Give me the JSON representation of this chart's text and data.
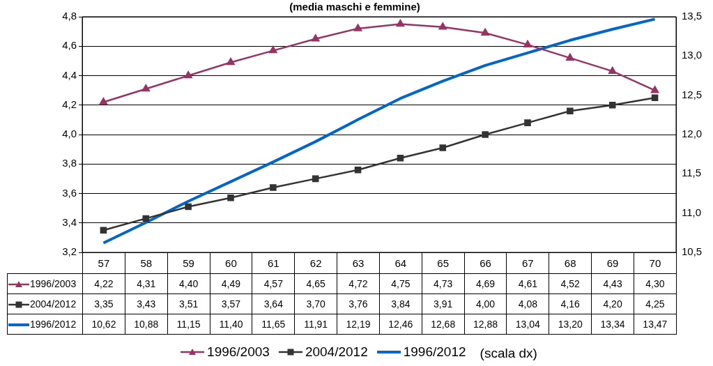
{
  "chart_data": {
    "type": "line",
    "title": "(media maschi e femmine)",
    "categories": [
      "57",
      "58",
      "59",
      "60",
      "61",
      "62",
      "63",
      "64",
      "65",
      "66",
      "67",
      "68",
      "69",
      "70"
    ],
    "series": [
      {
        "name": "1996/2003",
        "color": "#993366",
        "marker": "triangle",
        "values": [
          4.22,
          4.31,
          4.4,
          4.49,
          4.57,
          4.65,
          4.72,
          4.75,
          4.73,
          4.69,
          4.61,
          4.52,
          4.43,
          4.3
        ],
        "value_labels": [
          "4,22",
          "4,31",
          "4,40",
          "4,49",
          "4,57",
          "4,65",
          "4,72",
          "4,75",
          "4,73",
          "4,69",
          "4,61",
          "4,52",
          "4,43",
          "4,30"
        ]
      },
      {
        "name": "2004/2012",
        "color": "#333333",
        "marker": "square",
        "values": [
          3.35,
          3.43,
          3.51,
          3.57,
          3.64,
          3.7,
          3.76,
          3.84,
          3.91,
          4.0,
          4.08,
          4.16,
          4.2,
          4.25
        ],
        "value_labels": [
          "3,35",
          "3,43",
          "3,51",
          "3,57",
          "3,64",
          "3,70",
          "3,76",
          "3,84",
          "3,91",
          "4,00",
          "4,08",
          "4,16",
          "4,20",
          "4,25"
        ]
      },
      {
        "name": "1996/2012",
        "color": "#0066cc",
        "marker": "none",
        "axis": "y2",
        "values": [
          10.62,
          10.88,
          11.15,
          11.4,
          11.65,
          11.91,
          12.19,
          12.46,
          12.68,
          12.88,
          13.04,
          13.2,
          13.34,
          13.47
        ],
        "value_labels": [
          "10,62",
          "10,88",
          "11,15",
          "11,40",
          "11,65",
          "11,91",
          "12,19",
          "12,46",
          "12,68",
          "12,88",
          "13,04",
          "13,20",
          "13,34",
          "13,47"
        ]
      }
    ],
    "ylim": [
      3.2,
      4.8
    ],
    "yticks": [
      {
        "value": 3.2,
        "label": "3,2"
      },
      {
        "value": 3.4,
        "label": "3,4"
      },
      {
        "value": 3.6,
        "label": "3,6"
      },
      {
        "value": 3.8,
        "label": "3,8"
      },
      {
        "value": 4.0,
        "label": "4,0"
      },
      {
        "value": 4.2,
        "label": "4,2"
      },
      {
        "value": 4.4,
        "label": "4,4"
      },
      {
        "value": 4.6,
        "label": "4,6"
      },
      {
        "value": 4.8,
        "label": "4,8"
      }
    ],
    "y2lim": [
      10.5,
      13.5
    ],
    "y2ticks": [
      {
        "value": 10.5,
        "label": "10,5"
      },
      {
        "value": 11.0,
        "label": "11,0"
      },
      {
        "value": 11.5,
        "label": "11,5"
      },
      {
        "value": 12.0,
        "label": "12,0"
      },
      {
        "value": 12.5,
        "label": "12,5"
      },
      {
        "value": 13.0,
        "label": "13,0"
      },
      {
        "value": 13.5,
        "label": "13,5"
      }
    ],
    "grid": "y",
    "legend": "bottom",
    "line_style": "solid",
    "annotations": [
      "(scala dx)"
    ]
  }
}
